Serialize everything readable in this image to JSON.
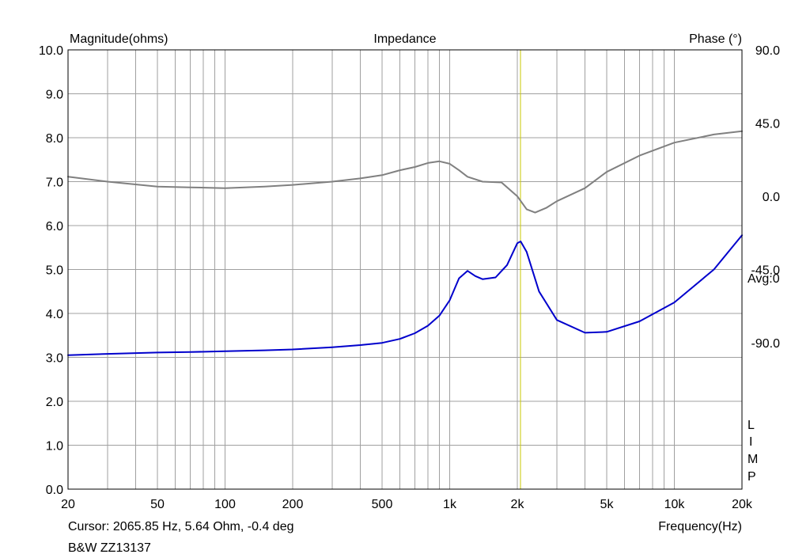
{
  "chart_data": {
    "type": "line",
    "title": "Impedance",
    "ylabel": "Magnitude(ohms)",
    "y2label": "Phase (°)",
    "xlabel": "Frequency(Hz)",
    "x_scale": "log",
    "xlim": [
      20,
      20000
    ],
    "ylim": [
      0,
      10
    ],
    "y2lim": [
      -180,
      90
    ],
    "grid": true,
    "x_ticks": [
      {
        "value": 20,
        "label": "20"
      },
      {
        "value": 50,
        "label": "50"
      },
      {
        "value": 100,
        "label": "100"
      },
      {
        "value": 200,
        "label": "200"
      },
      {
        "value": 500,
        "label": "500"
      },
      {
        "value": 1000,
        "label": "1k"
      },
      {
        "value": 2000,
        "label": "2k"
      },
      {
        "value": 5000,
        "label": "5k"
      },
      {
        "value": 10000,
        "label": "10k"
      },
      {
        "value": 20000,
        "label": "20k"
      }
    ],
    "y_ticks": [
      {
        "value": 0,
        "label": "0.0"
      },
      {
        "value": 1,
        "label": "1.0"
      },
      {
        "value": 2,
        "label": "2.0"
      },
      {
        "value": 3,
        "label": "3.0"
      },
      {
        "value": 4,
        "label": "4.0"
      },
      {
        "value": 5,
        "label": "5.0"
      },
      {
        "value": 6,
        "label": "6.0"
      },
      {
        "value": 7,
        "label": "7.0"
      },
      {
        "value": 8,
        "label": "8.0"
      },
      {
        "value": 9,
        "label": "9.0"
      },
      {
        "value": 10,
        "label": "10.0"
      }
    ],
    "y2_ticks": [
      {
        "value": 90,
        "label": "90.0"
      },
      {
        "value": 45,
        "label": "45.0"
      },
      {
        "value": 0,
        "label": "0.0"
      },
      {
        "value": -45,
        "label": "-45.0"
      },
      {
        "value": -90,
        "label": "-90.0"
      }
    ],
    "series": [
      {
        "color": "#0000cc",
        "axis": "left",
        "x": [
          20,
          30,
          50,
          70,
          100,
          150,
          200,
          300,
          400,
          500,
          600,
          700,
          800,
          900,
          1000,
          1100,
          1200,
          1300,
          1400,
          1600,
          1800,
          2000,
          2070,
          2200,
          2500,
          3000,
          4000,
          5000,
          7000,
          10000,
          15000,
          20000
        ],
        "values": [
          3.05,
          3.08,
          3.11,
          3.12,
          3.14,
          3.16,
          3.18,
          3.23,
          3.28,
          3.33,
          3.42,
          3.55,
          3.72,
          3.95,
          4.3,
          4.8,
          4.97,
          4.85,
          4.78,
          4.82,
          5.1,
          5.6,
          5.64,
          5.4,
          4.5,
          3.85,
          3.56,
          3.58,
          3.82,
          4.25,
          5.0,
          5.78
        ]
      },
      {
        "color": "#808080",
        "axis": "right",
        "x": [
          20,
          30,
          50,
          70,
          100,
          150,
          200,
          300,
          400,
          500,
          600,
          700,
          800,
          900,
          1000,
          1100,
          1200,
          1400,
          1700,
          2000,
          2200,
          2400,
          2700,
          3000,
          4000,
          5000,
          7000,
          10000,
          15000,
          20000
        ],
        "values": [
          12.0,
          9.0,
          6.0,
          5.5,
          5.0,
          6.0,
          7.0,
          9.0,
          11.0,
          13.0,
          16.0,
          18.0,
          20.5,
          21.5,
          20.0,
          16.0,
          12.0,
          9.0,
          8.5,
          0.0,
          -8.0,
          -10.0,
          -7.0,
          -3.0,
          5.0,
          15.0,
          25.0,
          33.0,
          38.0,
          40.0
        ]
      }
    ],
    "cursor": {
      "x": 2065.85,
      "color": "#c8c800"
    },
    "annotations": {
      "cursor_text": "Cursor: 2065.85 Hz, 5.64 Ohm, -0.4 deg",
      "avg": "Avg:0",
      "limp": [
        "L",
        "I",
        "M",
        "P"
      ],
      "subtitle": "B&W ZZ13137"
    }
  }
}
